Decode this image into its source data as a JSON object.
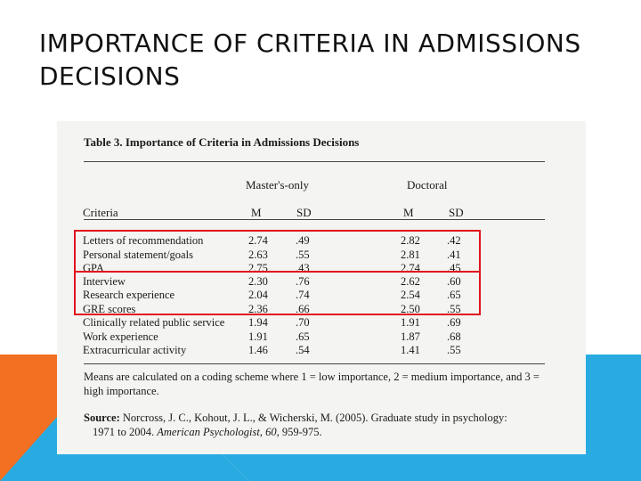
{
  "slide": {
    "title": "IMPORTANCE OF CRITERIA IN ADMISSIONS DECISIONS"
  },
  "table": {
    "title": "Table 3. Importance of Criteria in Admissions Decisions",
    "group_headers": [
      "Master's-only",
      "Doctoral"
    ],
    "columns": [
      "Criteria",
      "M",
      "SD",
      "M",
      "SD"
    ],
    "rows": [
      [
        "Letters of recommendation",
        "2.74",
        ".49",
        "2.82",
        ".42"
      ],
      [
        "Personal statement/goals",
        "2.63",
        ".55",
        "2.81",
        ".41"
      ],
      [
        "GPA",
        "2.75",
        ".43",
        "2.74",
        ".45"
      ],
      [
        "Interview",
        "2.30",
        ".76",
        "2.62",
        ".60"
      ],
      [
        "Research experience",
        "2.04",
        ".74",
        "2.54",
        ".65"
      ],
      [
        "GRE scores",
        "2.36",
        ".66",
        "2.50",
        ".55"
      ],
      [
        "Clinically related public service",
        "1.94",
        ".70",
        "1.91",
        ".69"
      ],
      [
        "Work experience",
        "1.91",
        ".65",
        "1.87",
        ".68"
      ],
      [
        "Extracurricular activity",
        "1.46",
        ".54",
        "1.41",
        ".55"
      ]
    ],
    "note": "Means are calculated on a coding scheme where 1 = low importance, 2 = medium importance, and 3 = high importance.",
    "source_label": "Source:",
    "source_text": "Norcross, J. C., Kohout, J. L., & Wicherski, M. (2005). Graduate study in psychology:",
    "source_line2_a": "1971 to 2004.",
    "source_line2_journal": "American Psychologist, 60,",
    "source_line2_b": "959-975."
  },
  "colors": {
    "highlight": "#e0141e",
    "accent_orange": "#f36f21",
    "accent_blue": "#29abe2"
  }
}
